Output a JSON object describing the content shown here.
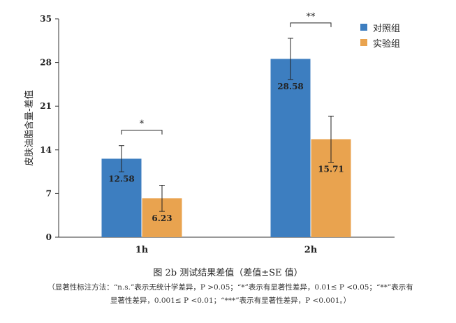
{
  "chart_data": {
    "type": "bar",
    "ylabel": "皮肤油脂含量-差值",
    "ylim": [
      0,
      35
    ],
    "yticks": [
      0,
      7,
      14,
      21,
      28,
      35
    ],
    "categories": [
      "1h",
      "2h"
    ],
    "series": [
      {
        "name": "对照组",
        "color": "#3d7ec0",
        "values": [
          12.58,
          28.58
        ],
        "errors": [
          2.1,
          3.3
        ],
        "labels": [
          "12.58",
          "28.58"
        ]
      },
      {
        "name": "实验组",
        "color": "#e9a34f",
        "values": [
          6.23,
          15.71
        ],
        "errors": [
          2.1,
          3.7
        ],
        "labels": [
          "6.23",
          "15.71"
        ]
      }
    ],
    "significance": [
      "*",
      "**"
    ],
    "grid": false,
    "legend_position": "top-right"
  },
  "caption": "图 2b 测试结果差值（差值±SE 值）",
  "note_line1": "（显著性标注方法：“n.s.”表示无统计学差异，P >0.05；“*”表示有显著性差异，0.01≤ P <0.05；“**”表示有",
  "note_line2": "显著性差异，0.001≤ P <0.01；“***”表示有显著性差异，P <0.001。）"
}
